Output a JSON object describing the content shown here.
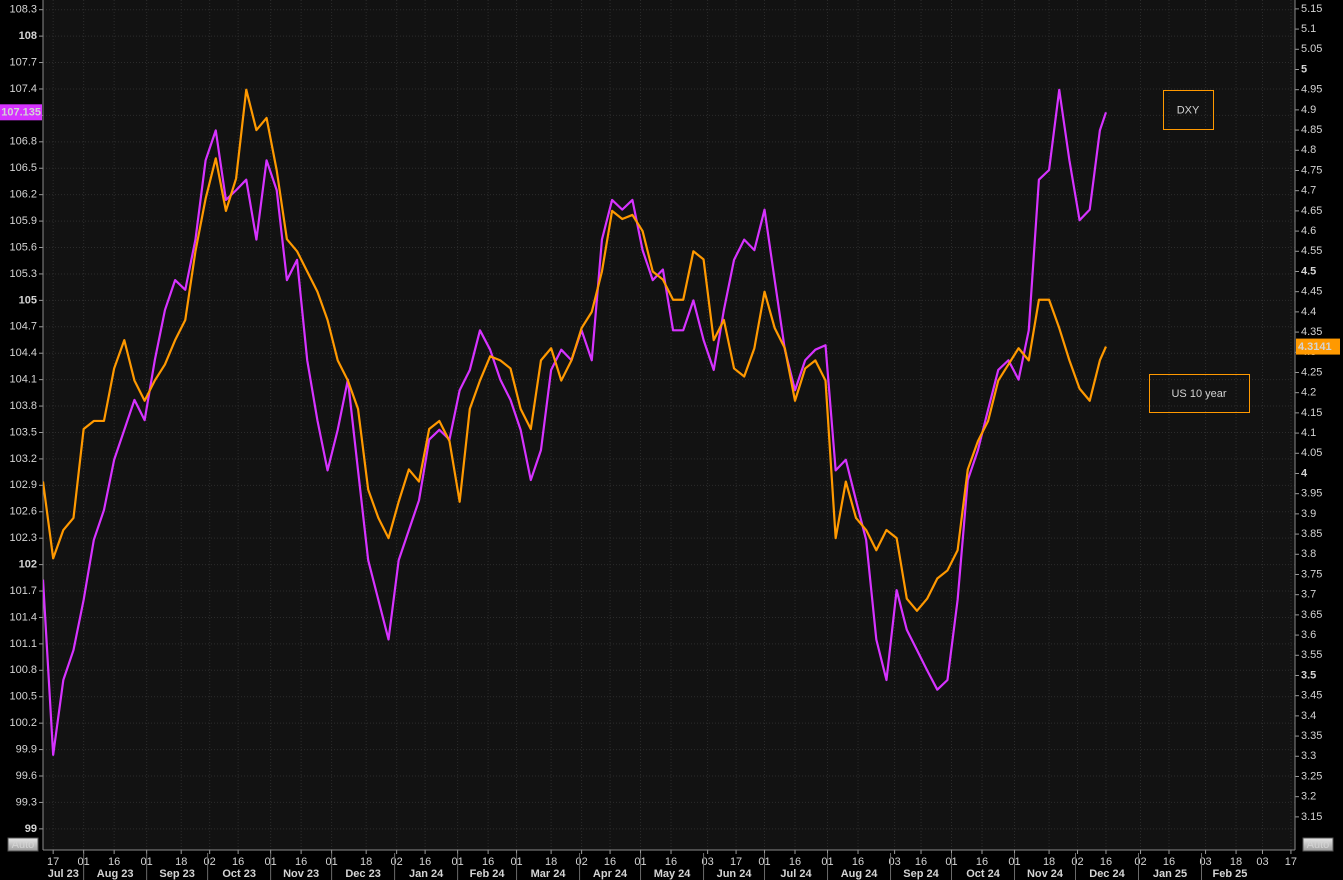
{
  "chart_data": {
    "type": "line",
    "x": [
      "2023-07-12",
      "2023-07-17",
      "2023-07-22",
      "2023-07-27",
      "2023-08-01",
      "2023-08-06",
      "2023-08-11",
      "2023-08-16",
      "2023-08-21",
      "2023-08-26",
      "2023-08-31",
      "2023-09-05",
      "2023-09-10",
      "2023-09-15",
      "2023-09-20",
      "2023-09-25",
      "2023-09-30",
      "2023-10-05",
      "2023-10-10",
      "2023-10-15",
      "2023-10-20",
      "2023-10-25",
      "2023-10-30",
      "2023-11-04",
      "2023-11-09",
      "2023-11-14",
      "2023-11-19",
      "2023-11-24",
      "2023-11-29",
      "2023-12-04",
      "2023-12-09",
      "2023-12-14",
      "2023-12-19",
      "2023-12-24",
      "2023-12-29",
      "2024-01-03",
      "2024-01-08",
      "2024-01-13",
      "2024-01-18",
      "2024-01-23",
      "2024-01-28",
      "2024-02-02",
      "2024-02-07",
      "2024-02-12",
      "2024-02-17",
      "2024-02-22",
      "2024-02-27",
      "2024-03-03",
      "2024-03-08",
      "2024-03-13",
      "2024-03-18",
      "2024-03-23",
      "2024-03-28",
      "2024-04-02",
      "2024-04-07",
      "2024-04-12",
      "2024-04-17",
      "2024-04-22",
      "2024-04-27",
      "2024-05-02",
      "2024-05-07",
      "2024-05-12",
      "2024-05-17",
      "2024-05-22",
      "2024-05-27",
      "2024-06-01",
      "2024-06-06",
      "2024-06-11",
      "2024-06-16",
      "2024-06-21",
      "2024-06-26",
      "2024-07-01",
      "2024-07-06",
      "2024-07-11",
      "2024-07-16",
      "2024-07-21",
      "2024-07-26",
      "2024-07-31",
      "2024-08-05",
      "2024-08-10",
      "2024-08-15",
      "2024-08-20",
      "2024-08-25",
      "2024-08-30",
      "2024-09-04",
      "2024-09-09",
      "2024-09-14",
      "2024-09-19",
      "2024-09-24",
      "2024-09-29",
      "2024-10-04",
      "2024-10-09",
      "2024-10-14",
      "2024-10-19",
      "2024-10-24",
      "2024-10-29",
      "2024-11-03",
      "2024-11-08",
      "2024-11-13",
      "2024-11-18",
      "2024-11-23",
      "2024-11-28",
      "2024-12-03",
      "2024-12-08",
      "2024-12-13",
      "2024-12-16"
    ],
    "series": [
      {
        "name": "DXY",
        "color": "#d633ff",
        "axis": "y",
        "values": [
          101.83,
          99.84,
          100.69,
          101.03,
          101.6,
          102.28,
          102.62,
          103.19,
          103.53,
          103.87,
          103.64,
          104.32,
          104.89,
          105.23,
          105.12,
          105.69,
          106.59,
          106.93,
          106.14,
          106.25,
          106.37,
          105.69,
          106.59,
          106.25,
          105.23,
          105.46,
          104.32,
          103.64,
          103.07,
          103.53,
          104.1,
          103.07,
          102.05,
          101.6,
          101.15,
          102.05,
          102.39,
          102.73,
          103.42,
          103.53,
          103.42,
          103.98,
          104.21,
          104.66,
          104.44,
          104.1,
          103.87,
          103.53,
          102.96,
          103.3,
          104.21,
          104.44,
          104.32,
          104.66,
          104.32,
          105.69,
          106.14,
          106.03,
          106.14,
          105.57,
          105.23,
          105.35,
          104.66,
          104.66,
          105,
          104.55,
          104.21,
          104.89,
          105.46,
          105.69,
          105.57,
          106.03,
          105.23,
          104.44,
          103.98,
          104.32,
          104.44,
          104.49,
          103.07,
          103.19,
          102.73,
          102.28,
          101.15,
          100.69,
          101.71,
          101.26,
          101.03,
          100.8,
          100.58,
          100.69,
          101.6,
          102.96,
          103.3,
          103.76,
          104.21,
          104.32,
          104.1,
          104.66,
          106.37,
          106.48,
          107.39,
          106.59,
          105.91,
          106.03,
          106.93,
          107.135
        ]
      },
      {
        "name": "US 10 year",
        "color": "#ff9900",
        "axis": "y2",
        "values": [
          3.98,
          3.79,
          3.86,
          3.89,
          4.11,
          4.13,
          4.13,
          4.26,
          4.33,
          4.23,
          4.18,
          4.23,
          4.27,
          4.33,
          4.38,
          4.55,
          4.68,
          4.78,
          4.65,
          4.73,
          4.95,
          4.85,
          4.88,
          4.75,
          4.58,
          4.55,
          4.5,
          4.45,
          4.38,
          4.28,
          4.23,
          4.16,
          3.96,
          3.89,
          3.84,
          3.93,
          4.01,
          3.98,
          4.11,
          4.13,
          4.08,
          3.93,
          4.16,
          4.23,
          4.29,
          4.28,
          4.26,
          4.16,
          4.11,
          4.28,
          4.31,
          4.23,
          4.28,
          4.36,
          4.4,
          4.5,
          4.65,
          4.63,
          4.64,
          4.6,
          4.5,
          4.48,
          4.43,
          4.43,
          4.55,
          4.53,
          4.33,
          4.38,
          4.26,
          4.24,
          4.31,
          4.45,
          4.36,
          4.31,
          4.18,
          4.26,
          4.28,
          4.23,
          3.84,
          3.98,
          3.89,
          3.86,
          3.81,
          3.86,
          3.84,
          3.69,
          3.66,
          3.69,
          3.74,
          3.76,
          3.81,
          4.01,
          4.08,
          4.13,
          4.23,
          4.27,
          4.31,
          4.28,
          4.43,
          4.43,
          4.36,
          4.28,
          4.21,
          4.18,
          4.28,
          4.3141
        ]
      }
    ],
    "xlim": [
      "2023-07-12",
      "2025-03-19"
    ],
    "xticks": [
      {
        "value": "2023-07-17",
        "label": "17"
      },
      {
        "value": "2023-08-01",
        "label": "01"
      },
      {
        "value": "2023-08-16",
        "label": "16"
      },
      {
        "value": "2023-09-01",
        "label": "01"
      },
      {
        "value": "2023-09-18",
        "label": "18"
      },
      {
        "value": "2023-10-02",
        "label": "02"
      },
      {
        "value": "2023-10-16",
        "label": "16"
      },
      {
        "value": "2023-11-01",
        "label": "01"
      },
      {
        "value": "2023-11-16",
        "label": "16"
      },
      {
        "value": "2023-12-01",
        "label": "01"
      },
      {
        "value": "2023-12-18",
        "label": "18"
      },
      {
        "value": "2024-01-02",
        "label": "02"
      },
      {
        "value": "2024-01-16",
        "label": "16"
      },
      {
        "value": "2024-02-01",
        "label": "01"
      },
      {
        "value": "2024-02-16",
        "label": "16"
      },
      {
        "value": "2024-03-01",
        "label": "01"
      },
      {
        "value": "2024-03-18",
        "label": "18"
      },
      {
        "value": "2024-04-02",
        "label": "02"
      },
      {
        "value": "2024-04-16",
        "label": "16"
      },
      {
        "value": "2024-05-01",
        "label": "01"
      },
      {
        "value": "2024-05-16",
        "label": "16"
      },
      {
        "value": "2024-06-03",
        "label": "03"
      },
      {
        "value": "2024-06-17",
        "label": "17"
      },
      {
        "value": "2024-07-01",
        "label": "01"
      },
      {
        "value": "2024-07-16",
        "label": "16"
      },
      {
        "value": "2024-08-01",
        "label": "01"
      },
      {
        "value": "2024-08-16",
        "label": "16"
      },
      {
        "value": "2024-09-03",
        "label": "03"
      },
      {
        "value": "2024-09-16",
        "label": "16"
      },
      {
        "value": "2024-10-01",
        "label": "01"
      },
      {
        "value": "2024-10-16",
        "label": "16"
      },
      {
        "value": "2024-11-01",
        "label": "01"
      },
      {
        "value": "2024-11-18",
        "label": "18"
      },
      {
        "value": "2024-12-02",
        "label": "02"
      },
      {
        "value": "2024-12-16",
        "label": "16"
      },
      {
        "value": "2025-01-02",
        "label": "02"
      },
      {
        "value": "2025-01-16",
        "label": "16"
      },
      {
        "value": "2025-02-03",
        "label": "03"
      },
      {
        "value": "2025-02-18",
        "label": "18"
      },
      {
        "value": "2025-03-03",
        "label": "03"
      },
      {
        "value": "2025-03-17",
        "label": "17"
      }
    ],
    "months": [
      {
        "value": "2023-07",
        "label": "Jul 23"
      },
      {
        "value": "2023-08",
        "label": "Aug 23"
      },
      {
        "value": "2023-09",
        "label": "Sep 23"
      },
      {
        "value": "2023-10",
        "label": "Oct 23"
      },
      {
        "value": "2023-11",
        "label": "Nov 23"
      },
      {
        "value": "2023-12",
        "label": "Dec 23"
      },
      {
        "value": "2024-01",
        "label": "Jan 24"
      },
      {
        "value": "2024-02",
        "label": "Feb 24"
      },
      {
        "value": "2024-03",
        "label": "Mar 24"
      },
      {
        "value": "2024-04",
        "label": "Apr 24"
      },
      {
        "value": "2024-05",
        "label": "May 24"
      },
      {
        "value": "2024-06",
        "label": "Jun 24"
      },
      {
        "value": "2024-07",
        "label": "Jul 24"
      },
      {
        "value": "2024-08",
        "label": "Aug 24"
      },
      {
        "value": "2024-09",
        "label": "Sep 24"
      },
      {
        "value": "2024-10",
        "label": "Oct 24"
      },
      {
        "value": "2024-11",
        "label": "Nov 24"
      },
      {
        "value": "2024-12",
        "label": "Dec 24"
      },
      {
        "value": "2025-01",
        "label": "Jan 25"
      },
      {
        "value": "2025-02",
        "label": "Feb 25"
      }
    ],
    "ylim": [
      98.76,
      108.41
    ],
    "yticks": [
      99,
      99.3,
      99.6,
      99.9,
      100.2,
      100.5,
      100.8,
      101.1,
      101.4,
      101.7,
      102,
      102.3,
      102.6,
      102.9,
      103.2,
      103.5,
      103.8,
      104.1,
      104.4,
      104.7,
      105,
      105.3,
      105.6,
      105.9,
      106.2,
      106.5,
      106.8,
      107.1,
      107.4,
      107.7,
      108,
      108.3
    ],
    "y2lim": [
      3.068,
      5.172
    ],
    "y2ticks": [
      3.15,
      3.2,
      3.25,
      3.3,
      3.35,
      3.4,
      3.45,
      3.5,
      3.55,
      3.6,
      3.65,
      3.7,
      3.75,
      3.8,
      3.85,
      3.9,
      3.95,
      4,
      4.05,
      4.1,
      4.15,
      4.2,
      4.25,
      4.3,
      4.35,
      4.4,
      4.45,
      4.5,
      4.55,
      4.6,
      4.65,
      4.7,
      4.75,
      4.8,
      4.85,
      4.9,
      4.95,
      5,
      5.05,
      5.1,
      5.15
    ],
    "grid": true,
    "legend_color": "#ff9900"
  },
  "controls": {
    "left": "Auto",
    "right": "Auto"
  }
}
